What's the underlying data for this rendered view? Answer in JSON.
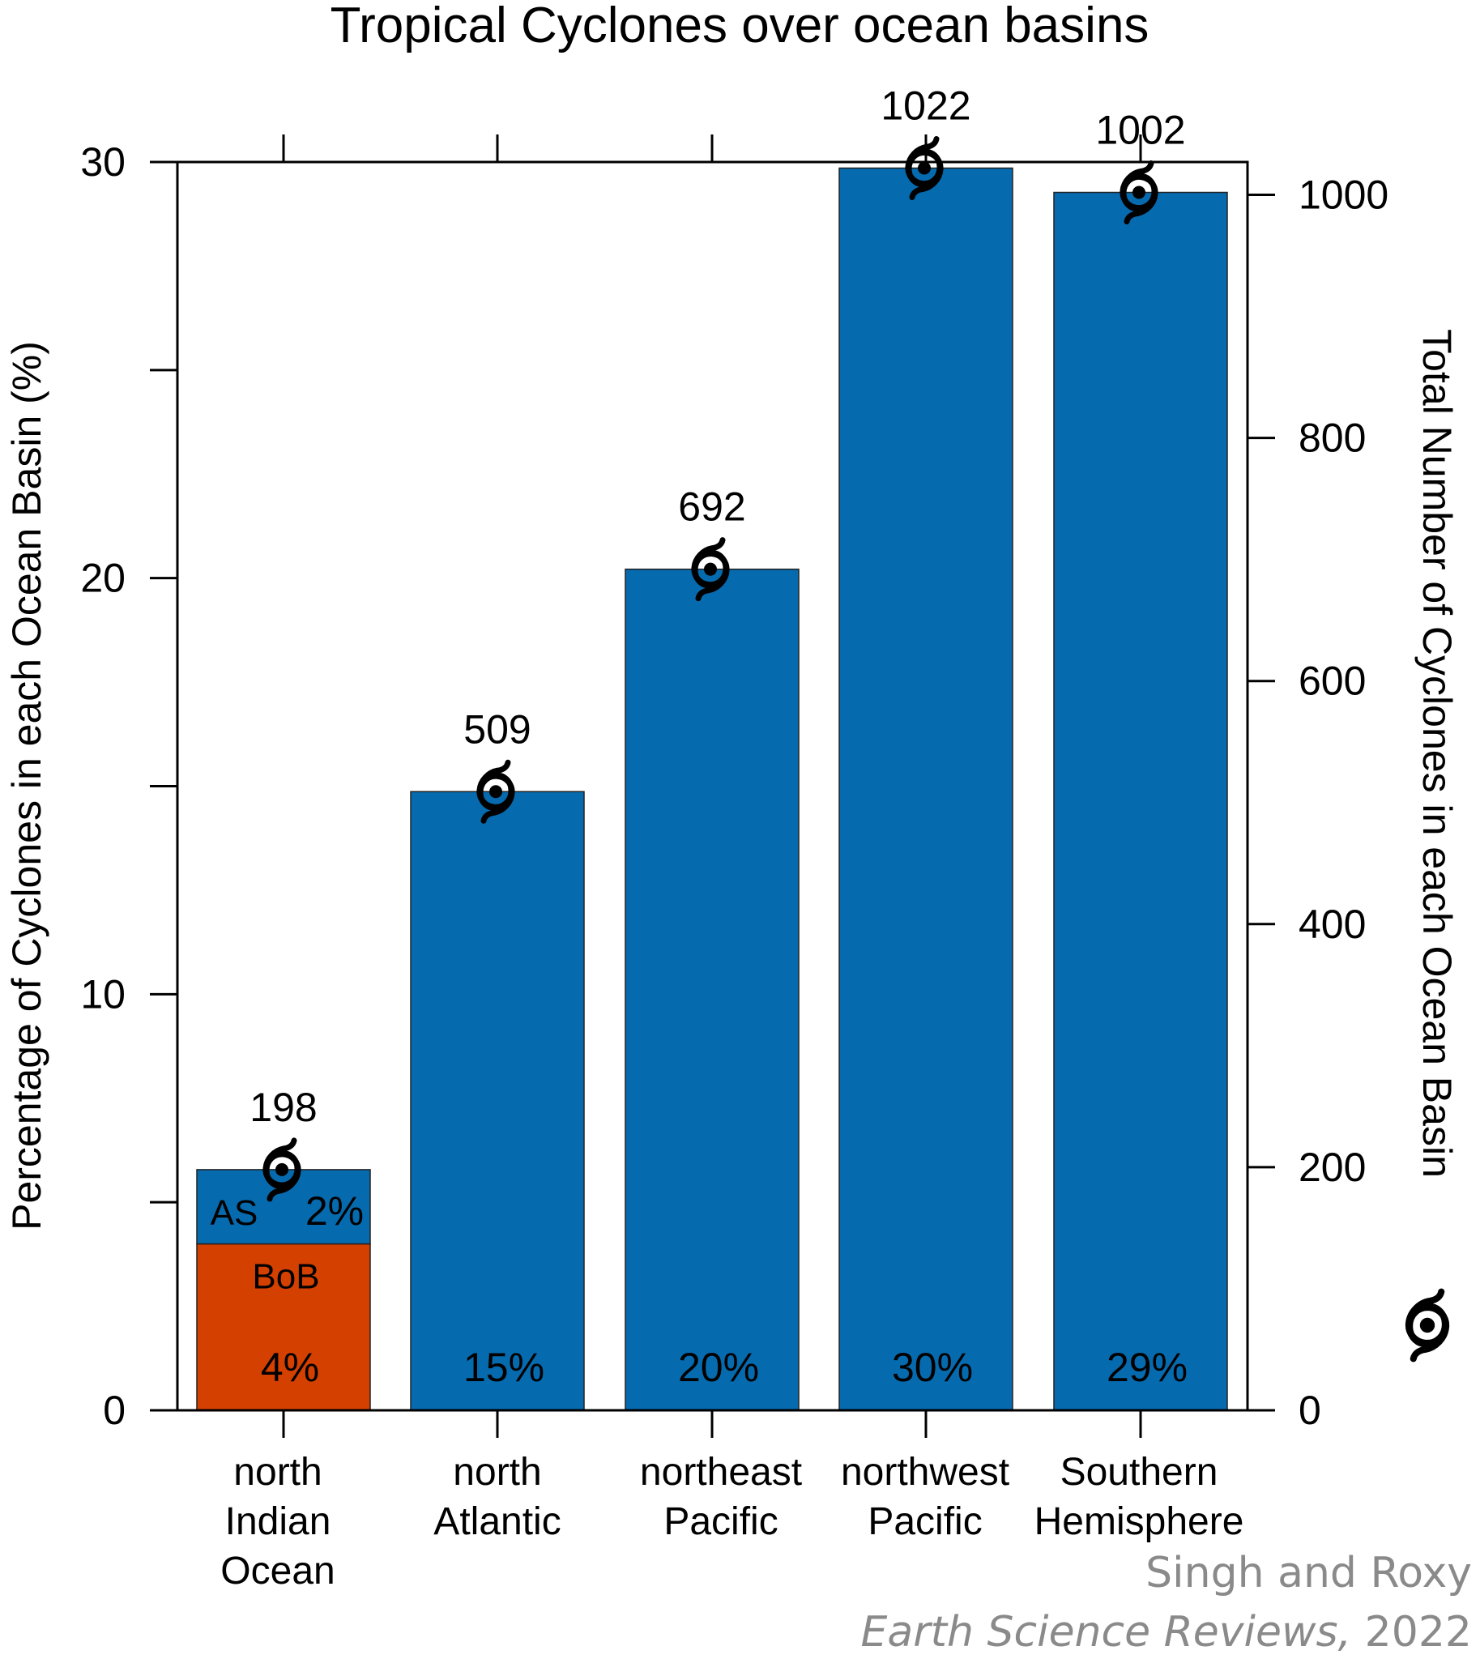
{
  "chart_data": {
    "type": "bar",
    "title": "Tropical Cyclones over ocean basins",
    "ylabel": "Percentage of Cyclones in each Ocean Basin (%)",
    "y2label": "Total Number of Cyclones in each Ocean Basin",
    "ylim": [
      0,
      30
    ],
    "y2lim": [
      0,
      1027
    ],
    "yticks": [
      0,
      10,
      20,
      30
    ],
    "y2ticks": [
      0,
      200,
      400,
      600,
      800,
      1000
    ],
    "categories": [
      [
        "north",
        "Indian",
        "Ocean"
      ],
      [
        "north",
        "Atlantic"
      ],
      [
        "northeast",
        "Pacific"
      ],
      [
        "northwest",
        "Pacific"
      ],
      [
        "Southern",
        "Hemisphere"
      ]
    ],
    "percent_labels": [
      "4%",
      "15%",
      "20%",
      "30%",
      "29%"
    ],
    "counts": [
      198,
      509,
      692,
      1022,
      1002
    ],
    "count_labels": [
      "198",
      "509",
      "692",
      "1022",
      "1002"
    ],
    "stacked_segments": {
      "category_index": 0,
      "segments": [
        {
          "label": "BoB",
          "percent_label": "4%",
          "color": "#d44000"
        },
        {
          "label": "AS",
          "percent_label": "2%",
          "color": "#066aaf"
        }
      ]
    },
    "colors": {
      "bar": "#066aaf",
      "bob": "#d44000",
      "marker": "#000000"
    },
    "marker_icon": "cyclone-icon",
    "grid": false
  },
  "credit": {
    "authors": "Singh and Roxy",
    "journal": "Earth Science Reviews,",
    "year": "2022"
  }
}
